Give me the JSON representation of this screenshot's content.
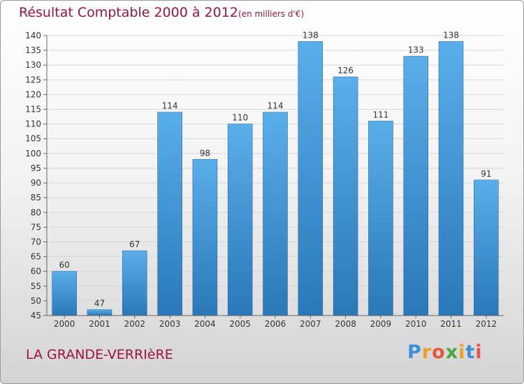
{
  "chart_data": {
    "type": "bar",
    "title": "Résultat Comptable 2000 à 2012",
    "subtitle": "(en milliers d'€)",
    "categories": [
      "2000",
      "2001",
      "2002",
      "2003",
      "2004",
      "2005",
      "2006",
      "2007",
      "2008",
      "2009",
      "2010",
      "2011",
      "2012"
    ],
    "values": [
      60,
      47,
      67,
      114,
      98,
      110,
      114,
      138,
      126,
      111,
      133,
      138,
      91
    ],
    "ylim": [
      45,
      140
    ],
    "yticks": [
      45,
      50,
      55,
      60,
      65,
      70,
      75,
      80,
      85,
      90,
      95,
      100,
      105,
      110,
      115,
      120,
      125,
      130,
      135,
      140
    ],
    "grid": true,
    "xlabel": "",
    "ylabel": ""
  },
  "footer": {
    "commune": "LA GRANDE-VERRIèRE",
    "logo_letters": [
      "P",
      "r",
      "o",
      "x",
      "i",
      "t",
      "i"
    ],
    "logo_colors": [
      "#3b8fd8",
      "#f0a020",
      "#e8553a",
      "#4aa83c",
      "#f0a020",
      "#3b8fd8",
      "#e8553a"
    ]
  },
  "colors": {
    "bar_top": "#5aaeea",
    "bar_bottom": "#2a78b8",
    "title": "#a0143c"
  }
}
